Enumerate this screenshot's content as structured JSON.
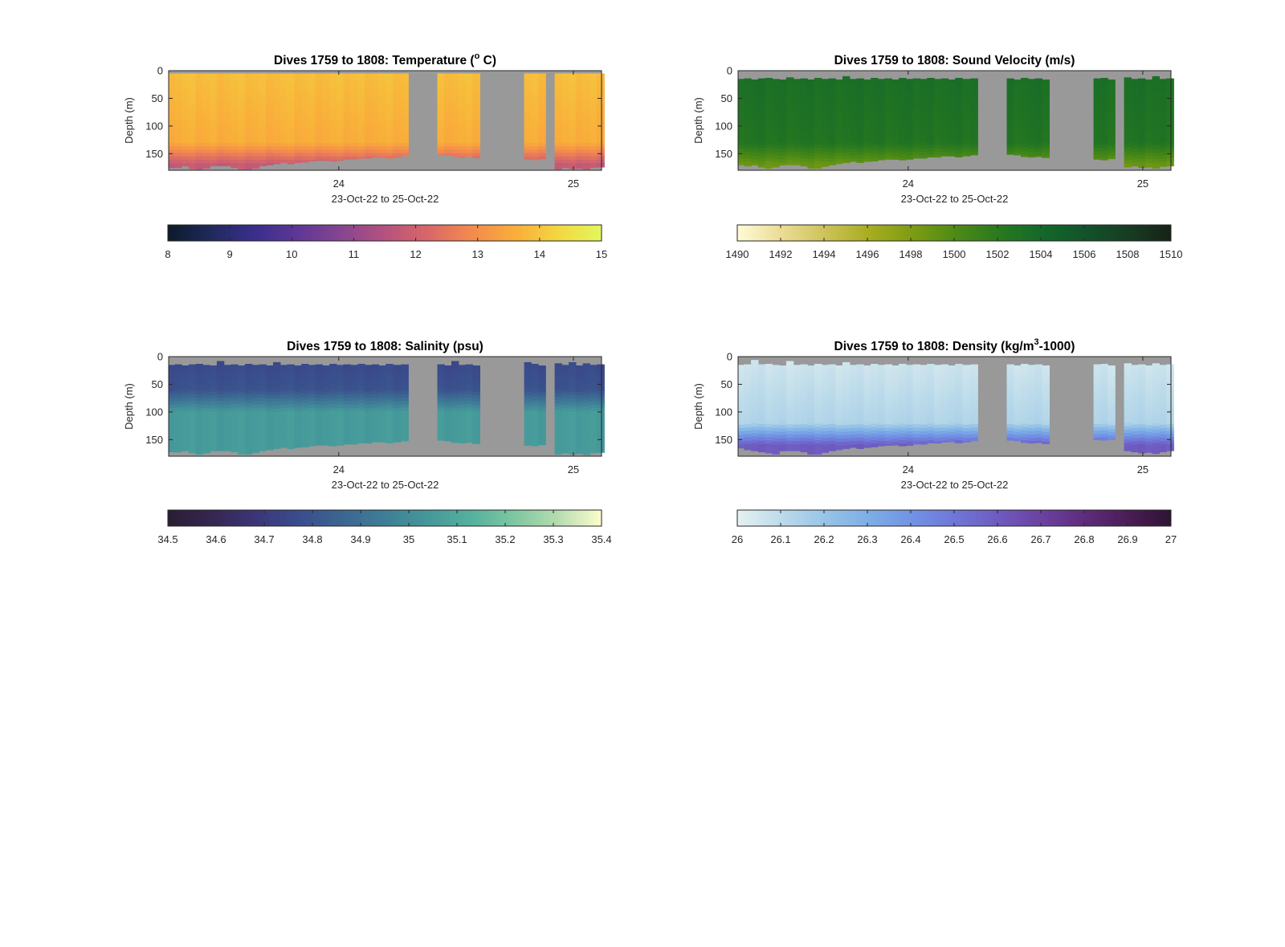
{
  "chart_data": [
    {
      "type": "heatmap",
      "title": "Dives 1759 to 1808: Temperature (",
      "title_sup": "o",
      "title_suffix": " C)",
      "xlabel": "23-Oct-22 to 25-Oct-22",
      "ylabel": "Depth (m)",
      "xlim": [
        23.275,
        25.12
      ],
      "ylim": [
        180,
        0
      ],
      "xticks": [
        24,
        25
      ],
      "xtick_labels": [
        "24",
        "25"
      ],
      "yticks": [
        0,
        50,
        100,
        150
      ],
      "ytick_labels": [
        "0",
        "50",
        "100",
        "150"
      ],
      "x": [
        23.275,
        23.3,
        23.33,
        23.36,
        23.39,
        23.42,
        23.45,
        23.48,
        23.51,
        23.54,
        23.57,
        23.6,
        23.63,
        23.66,
        23.69,
        23.72,
        23.75,
        23.78,
        23.81,
        23.84,
        23.87,
        23.9,
        23.93,
        23.96,
        23.99,
        24.02,
        24.05,
        24.08,
        24.11,
        24.14,
        24.17,
        24.2,
        24.23,
        24.265,
        24.42,
        24.45,
        24.48,
        24.51,
        24.54,
        24.57,
        24.79,
        24.82,
        24.85,
        24.92,
        24.95,
        24.98,
        25.01,
        25.04,
        25.07,
        25.1
      ],
      "dive_bottom_depth_m": [
        175,
        175,
        172,
        177,
        178,
        176,
        172,
        172,
        172,
        175,
        178,
        178,
        176,
        172,
        170,
        168,
        166,
        168,
        166,
        165,
        163,
        162,
        162,
        163,
        162,
        160,
        160,
        158,
        158,
        156,
        156,
        158,
        156,
        154,
        151,
        152,
        155,
        156,
        155,
        157,
        160,
        161,
        159,
        178,
        175,
        177,
        176,
        178,
        175,
        174
      ],
      "dive_top_depth_m": [
        5,
        5,
        5,
        5,
        5,
        5,
        5,
        5,
        5,
        5,
        5,
        5,
        5,
        5,
        5,
        5,
        5,
        5,
        5,
        5,
        5,
        5,
        5,
        5,
        5,
        5,
        5,
        5,
        5,
        5,
        5,
        5,
        5,
        5,
        5,
        5,
        5,
        5,
        5,
        5,
        5,
        5,
        5,
        5,
        5,
        5,
        5,
        5,
        5,
        5
      ],
      "profile": {
        "surface": 13.9,
        "mixed_layer_base_m": 130,
        "bottom": 11.8
      },
      "colorbar": {
        "range": [
          8,
          15
        ],
        "ticks": [
          8,
          9,
          10,
          11,
          12,
          13,
          14,
          15
        ],
        "tick_labels": [
          "8",
          "9",
          "10",
          "11",
          "12",
          "13",
          "14",
          "15"
        ],
        "colormap": [
          "#0d1a2b",
          "#1f2a5c",
          "#3a2e8c",
          "#5e3796",
          "#874590",
          "#b4527f",
          "#da6768",
          "#f38a4e",
          "#f9ad3a",
          "#f3d740",
          "#e2f75d"
        ]
      }
    },
    {
      "type": "heatmap",
      "title": "Dives 1759 to 1808: Sound Velocity (m/s)",
      "title_sup": "",
      "title_suffix": "",
      "xlabel": "23-Oct-22 to 25-Oct-22",
      "ylabel": "Depth (m)",
      "xlim": [
        23.275,
        25.12
      ],
      "ylim": [
        180,
        0
      ],
      "xticks": [
        24,
        25
      ],
      "xtick_labels": [
        "24",
        "25"
      ],
      "yticks": [
        0,
        50,
        100,
        150
      ],
      "ytick_labels": [
        "0",
        "50",
        "100",
        "150"
      ],
      "x": [
        23.275,
        23.3,
        23.33,
        23.36,
        23.39,
        23.42,
        23.45,
        23.48,
        23.51,
        23.54,
        23.57,
        23.6,
        23.63,
        23.66,
        23.69,
        23.72,
        23.75,
        23.78,
        23.81,
        23.84,
        23.87,
        23.9,
        23.93,
        23.96,
        23.99,
        24.02,
        24.05,
        24.08,
        24.11,
        24.14,
        24.17,
        24.2,
        24.23,
        24.265,
        24.42,
        24.45,
        24.48,
        24.51,
        24.54,
        24.57,
        24.79,
        24.82,
        24.85,
        24.92,
        24.95,
        24.98,
        25.01,
        25.04,
        25.07,
        25.1
      ],
      "dive_bottom_depth_m": [
        170,
        172,
        170,
        174,
        176,
        174,
        170,
        170,
        170,
        172,
        176,
        176,
        173,
        170,
        168,
        166,
        164,
        166,
        164,
        163,
        161,
        160,
        160,
        161,
        160,
        158,
        158,
        156,
        156,
        154,
        154,
        156,
        154,
        152,
        151,
        152,
        155,
        156,
        155,
        157,
        160,
        161,
        159,
        174,
        172,
        175,
        174,
        176,
        173,
        172
      ],
      "dive_top_depth_m": [
        15,
        14,
        16,
        14,
        13,
        15,
        16,
        12,
        15,
        14,
        16,
        13,
        15,
        14,
        16,
        10,
        15,
        14,
        16,
        13,
        15,
        14,
        16,
        13,
        15,
        14,
        15,
        13,
        15,
        14,
        16,
        13,
        15,
        14,
        14,
        16,
        13,
        15,
        14,
        16,
        14,
        13,
        16,
        12,
        15,
        14,
        16,
        10,
        15,
        14
      ],
      "profile": {
        "surface": 1503.4,
        "mixed_layer_base_m": 130,
        "bottom": 1498.8
      },
      "colorbar": {
        "range": [
          1490,
          1510
        ],
        "ticks": [
          1490,
          1492,
          1494,
          1496,
          1498,
          1500,
          1502,
          1504,
          1506,
          1508,
          1510
        ],
        "tick_labels": [
          "1490",
          "1492",
          "1494",
          "1496",
          "1498",
          "1500",
          "1502",
          "1504",
          "1506",
          "1508",
          "1510"
        ],
        "colormap": [
          "#fefbd6",
          "#ecdc96",
          "#cfc35a",
          "#a9ad22",
          "#7f9d12",
          "#4f8b16",
          "#2a7a1e",
          "#13692a",
          "#12542a",
          "#173d22",
          "#172218"
        ]
      }
    },
    {
      "type": "heatmap",
      "title": "Dives 1759 to 1808: Salinity (psu)",
      "title_sup": "",
      "title_suffix": "",
      "xlabel": "23-Oct-22 to 25-Oct-22",
      "ylabel": "Depth (m)",
      "xlim": [
        23.275,
        25.12
      ],
      "ylim": [
        180,
        0
      ],
      "xticks": [
        24,
        25
      ],
      "xtick_labels": [
        "24",
        "25"
      ],
      "yticks": [
        0,
        50,
        100,
        150
      ],
      "ytick_labels": [
        "0",
        "50",
        "100",
        "150"
      ],
      "x": [
        23.275,
        23.3,
        23.33,
        23.36,
        23.39,
        23.42,
        23.45,
        23.48,
        23.51,
        23.54,
        23.57,
        23.6,
        23.63,
        23.66,
        23.69,
        23.72,
        23.75,
        23.78,
        23.81,
        23.84,
        23.87,
        23.9,
        23.93,
        23.96,
        23.99,
        24.02,
        24.05,
        24.08,
        24.11,
        24.14,
        24.17,
        24.2,
        24.23,
        24.265,
        24.42,
        24.45,
        24.48,
        24.51,
        24.54,
        24.57,
        24.79,
        24.82,
        24.85,
        24.92,
        24.95,
        24.98,
        25.01,
        25.04,
        25.07,
        25.1
      ],
      "dive_bottom_depth_m": [
        172,
        172,
        170,
        174,
        176,
        174,
        170,
        170,
        170,
        172,
        176,
        176,
        173,
        170,
        168,
        166,
        164,
        166,
        164,
        163,
        161,
        160,
        160,
        161,
        160,
        158,
        158,
        156,
        156,
        154,
        154,
        156,
        154,
        152,
        151,
        152,
        155,
        156,
        155,
        157,
        160,
        161,
        159,
        176,
        174,
        176,
        175,
        177,
        174,
        173
      ],
      "dive_top_depth_m": [
        15,
        14,
        16,
        14,
        13,
        15,
        16,
        8,
        15,
        14,
        16,
        13,
        15,
        14,
        16,
        10,
        15,
        14,
        16,
        13,
        15,
        14,
        16,
        13,
        15,
        14,
        15,
        13,
        15,
        14,
        16,
        13,
        15,
        14,
        14,
        16,
        8,
        15,
        14,
        16,
        10,
        13,
        16,
        12,
        15,
        10,
        16,
        12,
        15,
        14
      ],
      "profile": {
        "surface": 34.75,
        "mixed_layer_base_m": 60,
        "bottom": 35.05
      },
      "colorbar": {
        "range": [
          34.5,
          35.4
        ],
        "ticks": [
          34.5,
          34.6,
          34.7,
          34.8,
          34.9,
          35,
          35.1,
          35.2,
          35.3,
          35.4
        ],
        "tick_labels": [
          "34.5",
          "34.6",
          "34.7",
          "34.8",
          "34.9",
          "35",
          "35.1",
          "35.2",
          "35.3",
          "35.4"
        ],
        "colormap": [
          "#291d33",
          "#35264f",
          "#3b3577",
          "#3a4c8c",
          "#3c6591",
          "#3f7e97",
          "#45989a",
          "#55b19e",
          "#7ec7a1",
          "#b6dcb0",
          "#fdfdcc"
        ]
      }
    },
    {
      "type": "heatmap",
      "title": "Dives 1759 to 1808: Density (kg/m",
      "title_sup": "3",
      "title_suffix": "-1000)",
      "xlabel": "23-Oct-22 to 25-Oct-22",
      "ylabel": "Depth (m)",
      "xlim": [
        23.275,
        25.12
      ],
      "ylim": [
        180,
        0
      ],
      "xticks": [
        24,
        25
      ],
      "xtick_labels": [
        "24",
        "25"
      ],
      "yticks": [
        0,
        50,
        100,
        150
      ],
      "ytick_labels": [
        "0",
        "50",
        "100",
        "150"
      ],
      "x": [
        23.275,
        23.3,
        23.33,
        23.36,
        23.39,
        23.42,
        23.45,
        23.48,
        23.51,
        23.54,
        23.57,
        23.6,
        23.63,
        23.66,
        23.69,
        23.72,
        23.75,
        23.78,
        23.81,
        23.84,
        23.87,
        23.9,
        23.93,
        23.96,
        23.99,
        24.02,
        24.05,
        24.08,
        24.11,
        24.14,
        24.17,
        24.2,
        24.23,
        24.265,
        24.42,
        24.45,
        24.48,
        24.51,
        24.54,
        24.57,
        24.79,
        24.82,
        24.85,
        24.92,
        24.95,
        24.98,
        25.01,
        25.04,
        25.07,
        25.1
      ],
      "dive_bottom_depth_m": [
        165,
        168,
        170,
        172,
        174,
        176,
        170,
        170,
        170,
        172,
        176,
        176,
        173,
        170,
        168,
        166,
        164,
        166,
        164,
        163,
        161,
        160,
        160,
        161,
        160,
        158,
        158,
        156,
        156,
        154,
        154,
        156,
        154,
        152,
        151,
        152,
        155,
        156,
        155,
        157,
        150,
        151,
        149,
        170,
        172,
        174,
        173,
        175,
        172,
        170
      ],
      "dive_top_depth_m": [
        15,
        14,
        6,
        14,
        13,
        15,
        16,
        8,
        15,
        14,
        16,
        13,
        15,
        14,
        16,
        10,
        15,
        14,
        16,
        13,
        15,
        14,
        16,
        13,
        15,
        14,
        15,
        13,
        15,
        14,
        16,
        13,
        15,
        14,
        14,
        16,
        13,
        15,
        14,
        16,
        14,
        13,
        16,
        12,
        15,
        14,
        16,
        12,
        15,
        14
      ],
      "profile": {
        "surface": 26.05,
        "mixed_layer_base_m": 120,
        "bottom": 26.6
      },
      "colorbar": {
        "range": [
          26,
          27
        ],
        "ticks": [
          26,
          26.1,
          26.2,
          26.3,
          26.4,
          26.5,
          26.6,
          26.7,
          26.8,
          26.9,
          27
        ],
        "tick_labels": [
          "26",
          "26.1",
          "26.2",
          "26.3",
          "26.4",
          "26.5",
          "26.6",
          "26.7",
          "26.8",
          "26.9",
          "27"
        ],
        "colormap": [
          "#e6f1f1",
          "#bcdbea",
          "#98c5e6",
          "#7eaee6",
          "#7194e4",
          "#6f77d8",
          "#6f5bc0",
          "#6b42a0",
          "#5e2c7c",
          "#4a1d56",
          "#2f1334"
        ]
      }
    }
  ],
  "colors": {
    "no_data": "#999999",
    "axes": "#262626",
    "background": "#ffffff"
  }
}
